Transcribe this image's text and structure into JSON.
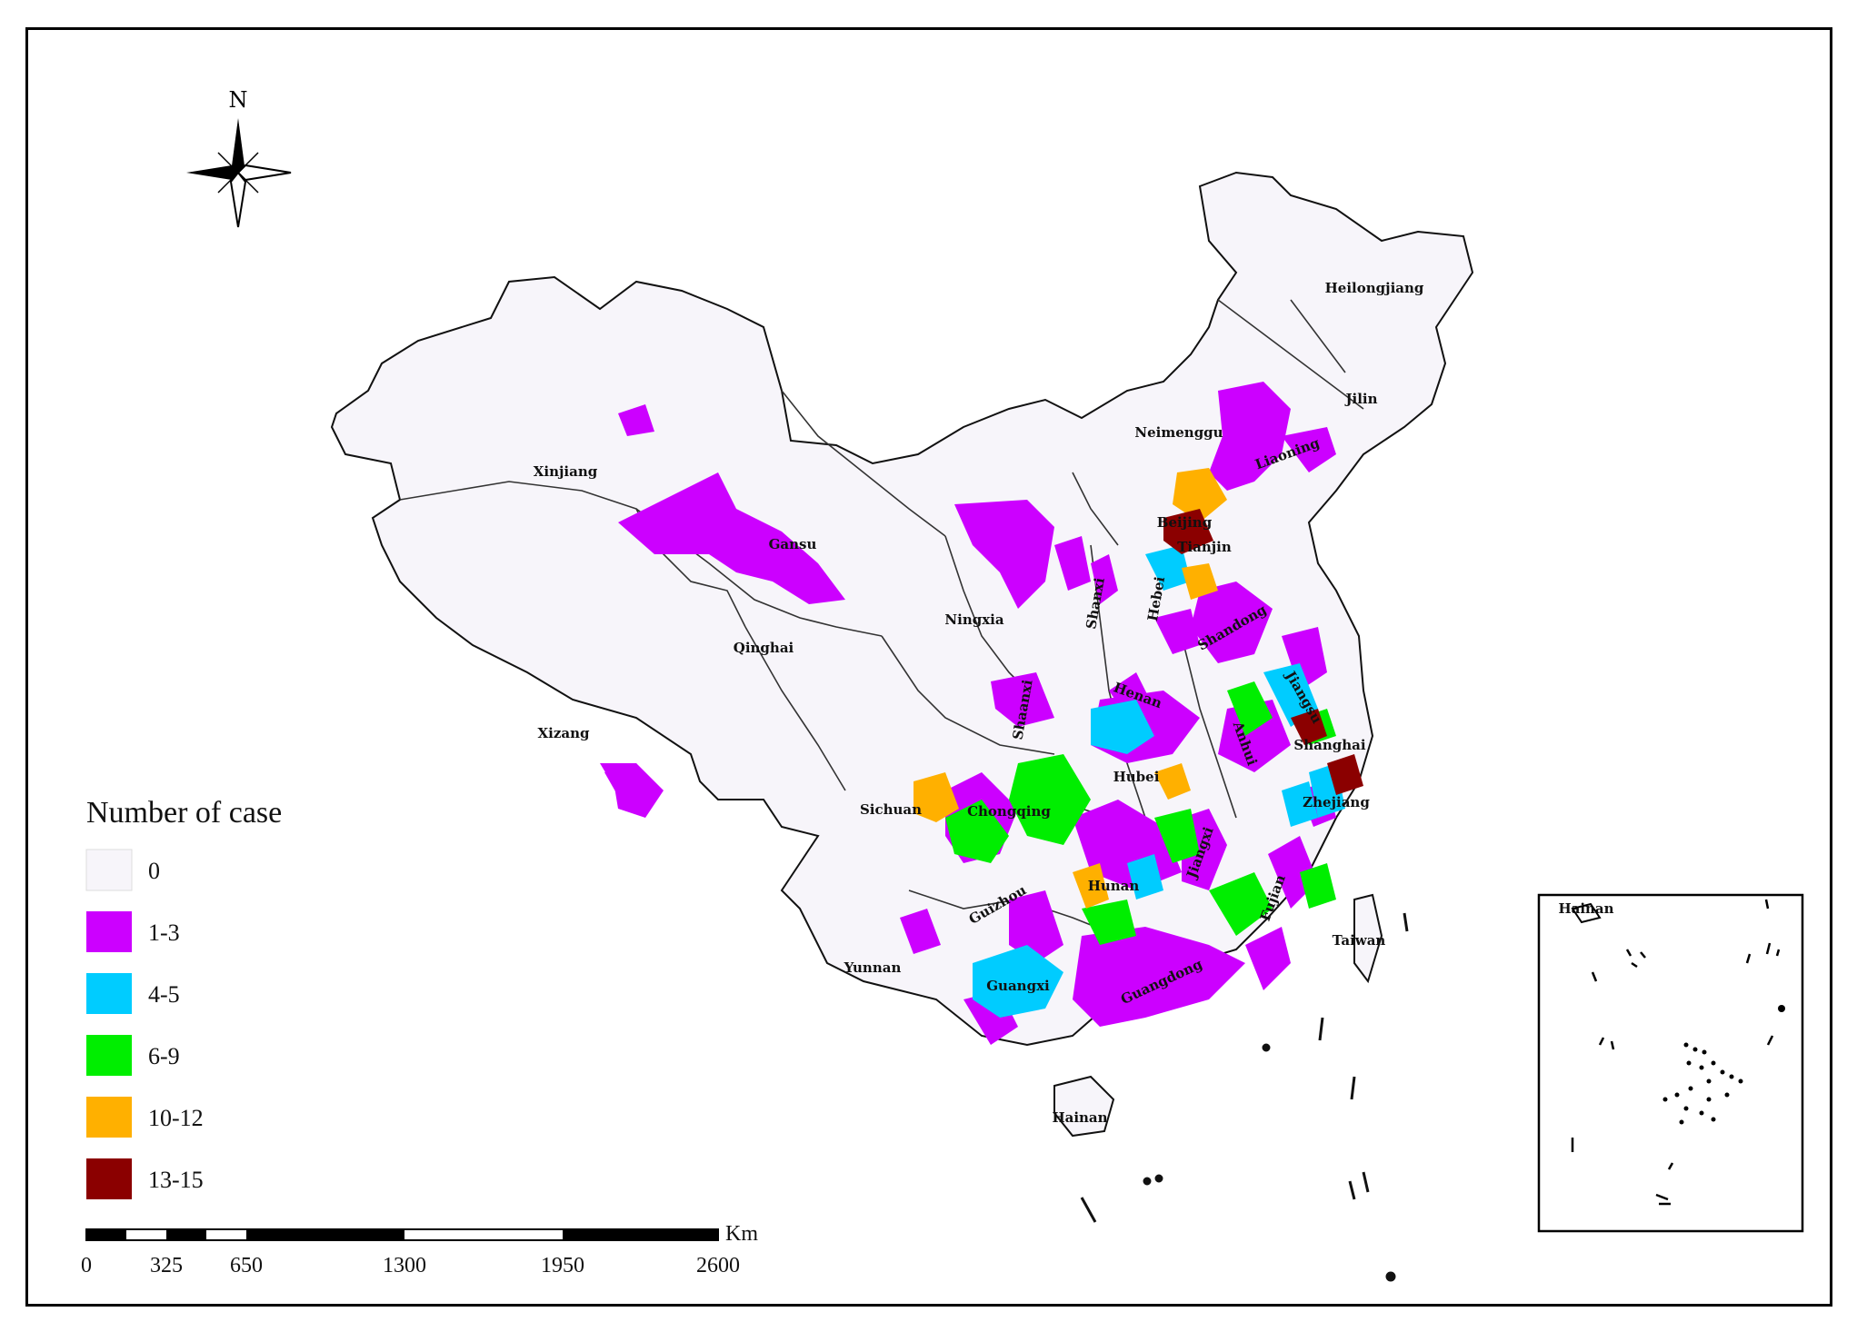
{
  "north_label": "N",
  "legend": {
    "title": "Number of case",
    "items": [
      {
        "label": "0",
        "color": "#f7f5fa"
      },
      {
        "label": "1-3",
        "color": "#cc00ff"
      },
      {
        "label": "4-5",
        "color": "#00ccff"
      },
      {
        "label": "6-9",
        "color": "#00ee00"
      },
      {
        "label": "10-12",
        "color": "#ffb000"
      },
      {
        "label": "13-15",
        "color": "#8b0000"
      }
    ]
  },
  "scale_bar": {
    "unit": "Km",
    "ticks": [
      "0",
      "325",
      "650",
      "1300",
      "1950",
      "2600"
    ]
  },
  "provinces": [
    {
      "name": "Heilongjiang"
    },
    {
      "name": "Jilin"
    },
    {
      "name": "Neimenggu"
    },
    {
      "name": "Liaoning"
    },
    {
      "name": "Beijing"
    },
    {
      "name": "Tianjin"
    },
    {
      "name": "Hebei"
    },
    {
      "name": "Shanxi"
    },
    {
      "name": "Shandong"
    },
    {
      "name": "Xinjiang"
    },
    {
      "name": "Gansu"
    },
    {
      "name": "Ningxia"
    },
    {
      "name": "Qinghai"
    },
    {
      "name": "Xizang"
    },
    {
      "name": "Shaanxi"
    },
    {
      "name": "Henan"
    },
    {
      "name": "Jiangsu"
    },
    {
      "name": "Anhui"
    },
    {
      "name": "Shanghai"
    },
    {
      "name": "Hubei"
    },
    {
      "name": "Zhejiang"
    },
    {
      "name": "Sichuan"
    },
    {
      "name": "Chongqing"
    },
    {
      "name": "Jiangxi"
    },
    {
      "name": "Hunan"
    },
    {
      "name": "Fujian"
    },
    {
      "name": "Guizhou"
    },
    {
      "name": "Taiwan"
    },
    {
      "name": "Yunnan"
    },
    {
      "name": "Guangxi"
    },
    {
      "name": "Guangdong"
    },
    {
      "name": "Hainan"
    }
  ],
  "inset_label": "Hainan"
}
